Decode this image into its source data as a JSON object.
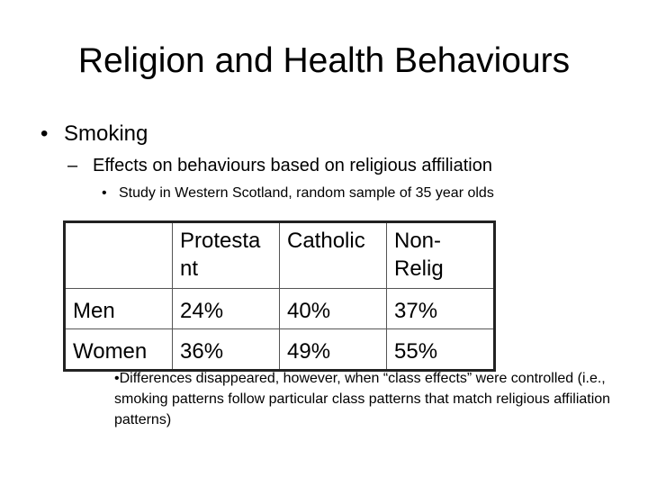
{
  "slide": {
    "title": "Religion and Health Behaviours",
    "bullet_level1": "Smoking",
    "bullet_level2": "Effects on behaviours based on religious affiliation",
    "bullet_level3": "Study in Western Scotland, random sample of 35 year olds",
    "dash": "–",
    "dot": "•"
  },
  "table": {
    "header": [
      "",
      "Protesta nt",
      "Catholic",
      "Non-Relig"
    ],
    "header_lines": {
      "c1_l1": "Protesta",
      "c1_l2": "nt",
      "c2_l1": "Catholic",
      "c3_l1": "Non-",
      "c3_l2": "Relig"
    },
    "rows": [
      {
        "label": "Men",
        "protestant": "24%",
        "catholic": "40%",
        "nonrelig": "37%"
      },
      {
        "label": "Women",
        "protestant": "36%",
        "catholic": "49%",
        "nonrelig": "55%"
      }
    ]
  },
  "note": "•Differences disappeared, however, when “class effects” were controlled (i.e., smoking patterns follow particular class patterns that match religious affiliation patterns)"
}
